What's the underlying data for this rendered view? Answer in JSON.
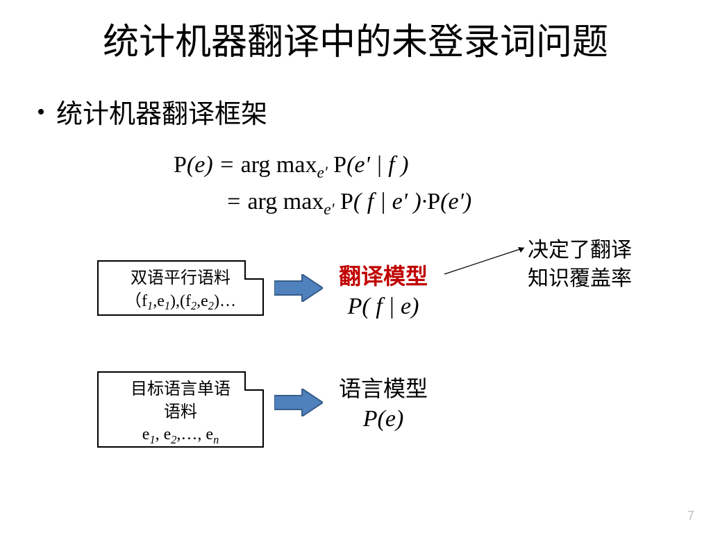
{
  "title": "统计机器翻译中的未登录词问题",
  "bullet": "统计机器翻译框架",
  "formula": {
    "line1_html": "<span class='rm'>P</span>(<span>e</span>) = <span class='rm'>arg max</span><span class='sub'>e'</span> <span class='rm'>P</span>(<span>e</span>' | <span>f</span> )",
    "line2_html": "= <span class='rm'>arg max</span><span class='sub'>e'</span> <span class='rm'>P</span>( <span>f</span> | <span>e</span>' )·<span class='rm'>P</span>(<span>e</span>')"
  },
  "box1": {
    "line1": "双语平行语料",
    "line2_html": "（f<span class='sub'>1</span>,e<span class='sub'>1</span>),(f<span class='sub'>2</span>,e<span class='sub'>2</span>)…"
  },
  "box2": {
    "line1": "目标语言单语",
    "line2": "语料",
    "line3_html": "e<span class='sub'>1</span>, e<span class='sub'>2</span>,…, e<span class='sub'>n</span>"
  },
  "model1": {
    "title": "翻译模型",
    "formula_html": "<span class='rm'>P</span>( <span>f</span> | <span>e</span>)"
  },
  "model2": {
    "title": "语言模型",
    "formula_html": "<span class='rm'>P</span>(<span>e</span>)"
  },
  "annotation": {
    "line1": "决定了翻译",
    "line2": "知识覆盖率"
  },
  "arrow": {
    "fill": "#4f81bd",
    "stroke": "#385d8a"
  },
  "page_number": "7"
}
